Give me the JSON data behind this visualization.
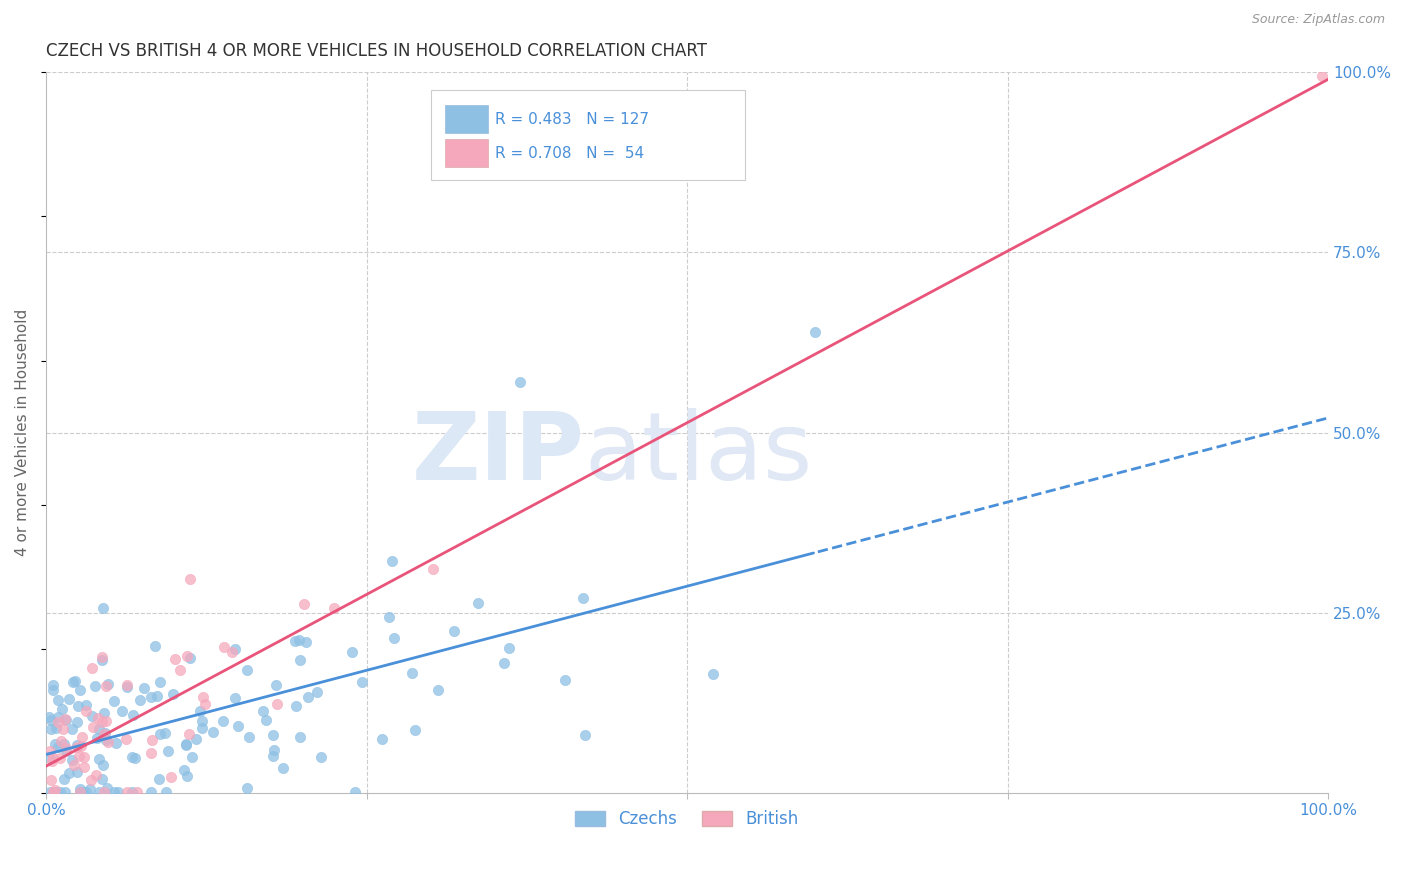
{
  "title": "CZECH VS BRITISH 4 OR MORE VEHICLES IN HOUSEHOLD CORRELATION CHART",
  "source": "Source: ZipAtlas.com",
  "ylabel": "4 or more Vehicles in Household",
  "xlim": [
    0,
    1
  ],
  "ylim": [
    0,
    1
  ],
  "czech_R": 0.483,
  "czech_N": 127,
  "british_R": 0.708,
  "british_N": 54,
  "czech_color": "#8ec0e4",
  "british_color": "#f5a8bc",
  "czech_line_color": "#4a90d9",
  "british_line_color": "#e8547a",
  "watermark_color": "#dce8f5",
  "background_color": "#ffffff",
  "grid_color": "#cccccc",
  "title_color": "#333333",
  "tick_color": "#4a90d9",
  "legend_text_color": "#4a90d9",
  "source_color": "#999999"
}
